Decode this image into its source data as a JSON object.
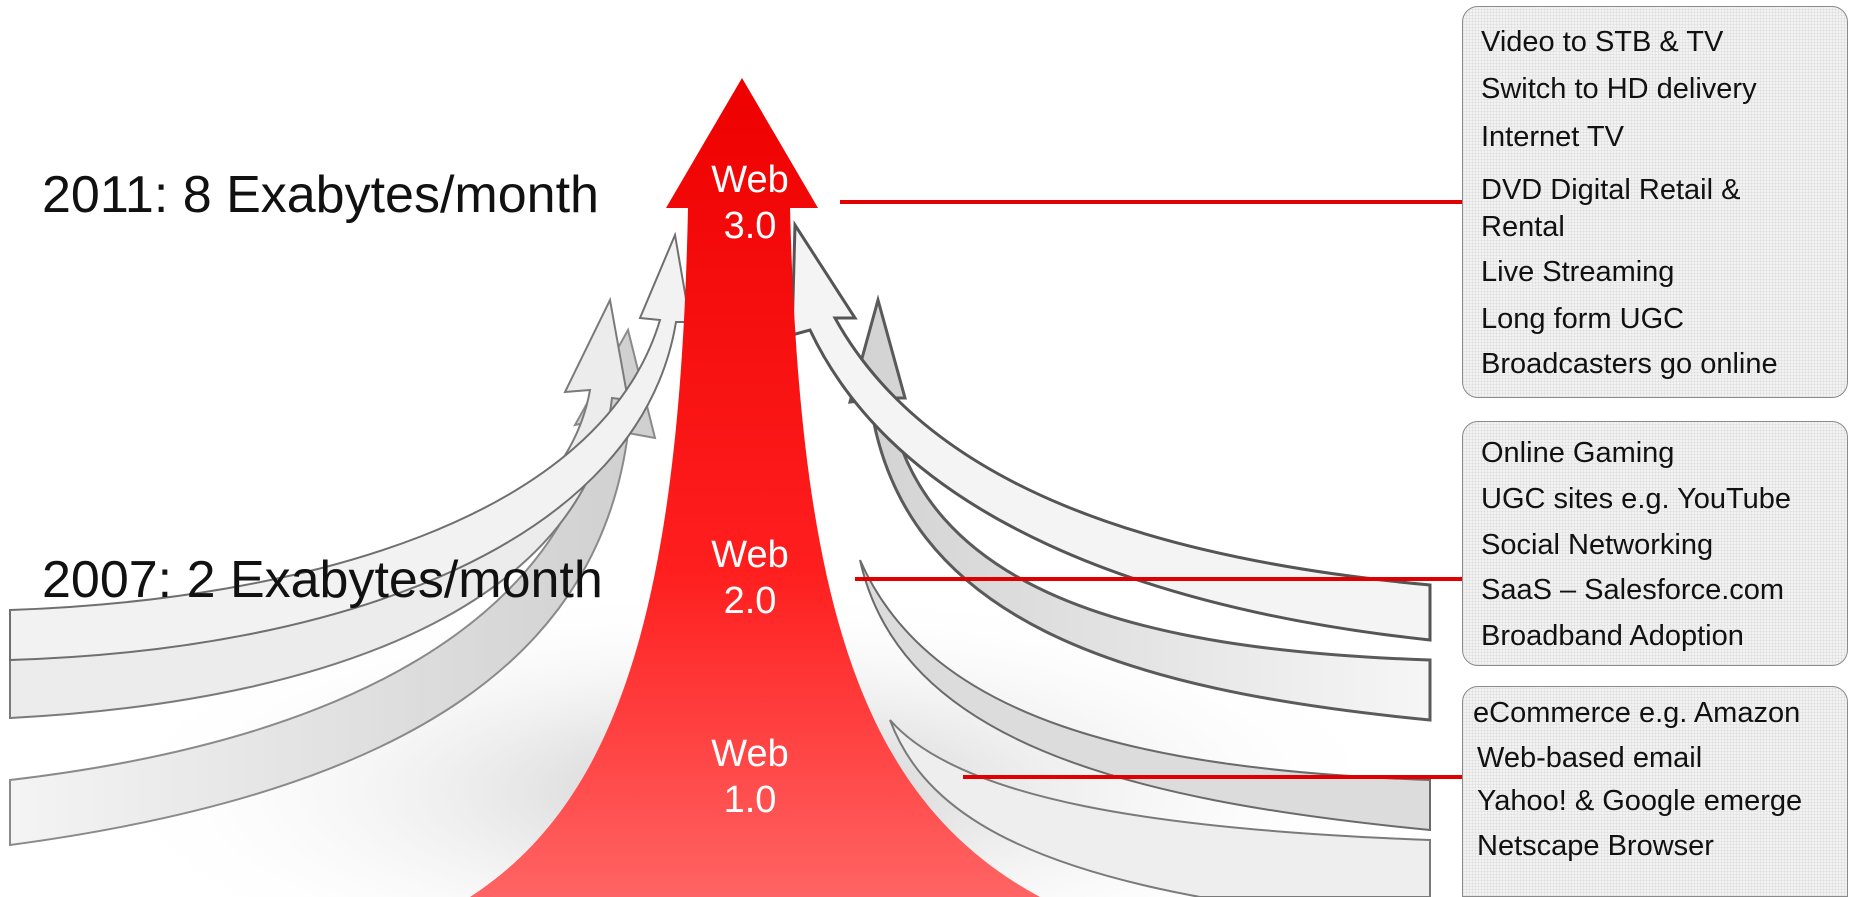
{
  "colors": {
    "accent": "#e00000",
    "arrow_gray": "#e6e6e6",
    "box_background": "#f2f2f2"
  },
  "traffic": {
    "top": "2011: 8 Exabytes/month",
    "middle": "2007: 2 Exabytes/month"
  },
  "web": {
    "v3": {
      "line1": "Web",
      "line2": "3.0"
    },
    "v2": {
      "line1": "Web",
      "line2": "2.0"
    },
    "v1": {
      "line1": "Web",
      "line2": "1.0"
    }
  },
  "boxes": {
    "web3": {
      "items": [
        "Video to STB & TV",
        "Switch to HD delivery",
        "Internet TV",
        "DVD Digital Retail &",
        "Rental",
        "Live Streaming",
        "Long form UGC",
        "Broadcasters go online"
      ]
    },
    "web2": {
      "items": [
        "Online Gaming",
        "UGC sites e.g. YouTube",
        "Social Networking",
        "SaaS – Salesforce.com",
        "Broadband Adoption"
      ]
    },
    "web1": {
      "items": [
        "eCommerce e.g. Amazon",
        "Web-based email",
        "Yahoo! & Google emerge",
        "Netscape Browser"
      ]
    }
  }
}
